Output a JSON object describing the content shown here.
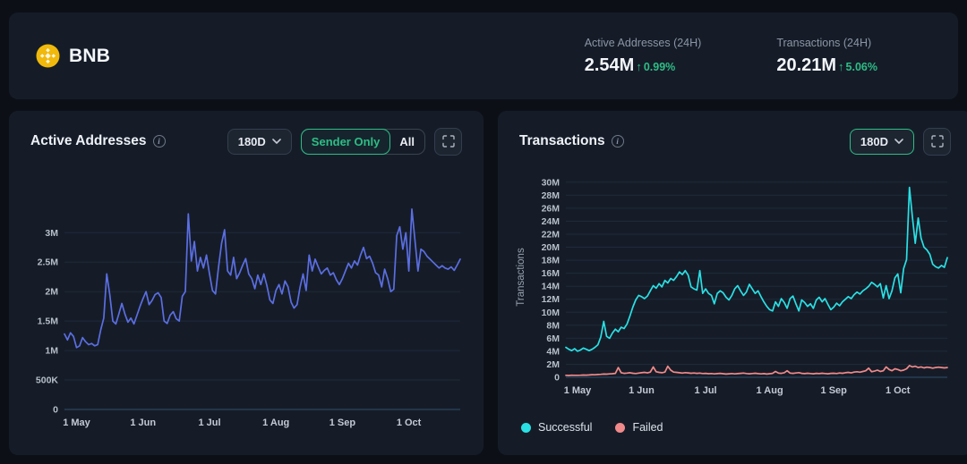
{
  "header": {
    "coin_name": "BNB",
    "stats": [
      {
        "label": "Active Addresses (24H)",
        "value": "2.54M",
        "arrow": "↑",
        "change": "0.99%",
        "direction": "up"
      },
      {
        "label": "Transactions (24H)",
        "value": "20.21M",
        "arrow": "↑",
        "change": "5.06%",
        "direction": "up"
      }
    ]
  },
  "panels": {
    "active_addresses": {
      "title": "Active Addresses",
      "range": "180D",
      "toggle": {
        "selected": "Sender Only",
        "other": "All"
      }
    },
    "transactions": {
      "title": "Transactions",
      "range": "180D"
    }
  },
  "legend": [
    {
      "name": "Successful",
      "color": "#2ae0e4"
    },
    {
      "name": "Failed",
      "color": "#f08a8a"
    }
  ],
  "colors": {
    "accent_green": "#2ebd85",
    "line_blue": "#5b6ee1",
    "line_cyan": "#2ae0e4",
    "line_red": "#f08a8a",
    "coin_gold": "#f0b90b",
    "panel_bg": "#151c28",
    "page_bg": "#0c1016"
  },
  "chart_data": [
    {
      "type": "line",
      "title": "Active Addresses",
      "range": "180D",
      "unit": "millions",
      "grid": true,
      "x_tick_labels": [
        "1 May",
        "1 Jun",
        "1 Jul",
        "1 Aug",
        "1 Sep",
        "1 Oct"
      ],
      "x_tick_indices": [
        4,
        26,
        48,
        70,
        92,
        114
      ],
      "y_ticks": [
        {
          "v": 0,
          "label": "0"
        },
        {
          "v": 0.5,
          "label": "500K"
        },
        {
          "v": 1,
          "label": "1M"
        },
        {
          "v": 1.5,
          "label": "1.5M"
        },
        {
          "v": 2,
          "label": "2M"
        },
        {
          "v": 2.5,
          "label": "2.5M"
        },
        {
          "v": 3,
          "label": "3M"
        }
      ],
      "y_max": 3.55,
      "series": [
        {
          "name": "Active Addresses",
          "color": "#5b6ee1",
          "values": [
            1.28,
            1.18,
            1.3,
            1.24,
            1.05,
            1.08,
            1.22,
            1.15,
            1.1,
            1.12,
            1.08,
            1.1,
            1.35,
            1.55,
            2.3,
            1.95,
            1.5,
            1.45,
            1.62,
            1.8,
            1.62,
            1.48,
            1.55,
            1.45,
            1.6,
            1.75,
            1.88,
            2.0,
            1.78,
            1.85,
            1.95,
            1.98,
            1.9,
            1.5,
            1.46,
            1.6,
            1.66,
            1.54,
            1.5,
            1.92,
            2.0,
            3.32,
            2.52,
            2.85,
            2.35,
            2.58,
            2.4,
            2.62,
            2.3,
            2.02,
            1.96,
            2.42,
            2.82,
            3.05,
            2.35,
            2.28,
            2.58,
            2.22,
            2.32,
            2.45,
            2.56,
            2.3,
            2.22,
            2.05,
            2.28,
            2.12,
            2.3,
            2.1,
            1.86,
            1.8,
            2.02,
            2.12,
            1.96,
            2.18,
            2.08,
            1.82,
            1.72,
            1.78,
            2.08,
            2.3,
            2.02,
            2.62,
            2.35,
            2.55,
            2.42,
            2.3,
            2.36,
            2.4,
            2.28,
            2.32,
            2.2,
            2.12,
            2.22,
            2.35,
            2.48,
            2.4,
            2.52,
            2.45,
            2.62,
            2.75,
            2.56,
            2.6,
            2.48,
            2.32,
            2.28,
            2.08,
            2.38,
            2.22,
            2.0,
            2.04,
            2.95,
            3.1,
            2.72,
            3.0,
            2.35,
            3.4,
            2.88,
            2.35,
            2.72,
            2.68,
            2.6,
            2.55,
            2.5,
            2.45,
            2.4,
            2.44,
            2.4,
            2.38,
            2.42,
            2.36,
            2.45,
            2.55
          ]
        }
      ]
    },
    {
      "type": "line",
      "title": "Transactions",
      "range": "180D",
      "unit": "millions",
      "grid": true,
      "y_axis_label": "Transactions",
      "legend_position": "bottom",
      "x_tick_labels": [
        "1 May",
        "1 Jun",
        "1 Jul",
        "1 Aug",
        "1 Sep",
        "1 Oct"
      ],
      "x_tick_indices": [
        4,
        26,
        48,
        70,
        92,
        114
      ],
      "y_ticks": [
        {
          "v": 0,
          "label": "0"
        },
        {
          "v": 2,
          "label": "2M"
        },
        {
          "v": 4,
          "label": "4M"
        },
        {
          "v": 6,
          "label": "6M"
        },
        {
          "v": 8,
          "label": "8M"
        },
        {
          "v": 10,
          "label": "10M"
        },
        {
          "v": 12,
          "label": "12M"
        },
        {
          "v": 14,
          "label": "14M"
        },
        {
          "v": 16,
          "label": "16M"
        },
        {
          "v": 18,
          "label": "18M"
        },
        {
          "v": 20,
          "label": "20M"
        },
        {
          "v": 22,
          "label": "22M"
        },
        {
          "v": 24,
          "label": "24M"
        },
        {
          "v": 26,
          "label": "26M"
        },
        {
          "v": 28,
          "label": "28M"
        },
        {
          "v": 30,
          "label": "30M"
        }
      ],
      "y_max": 30.8,
      "series": [
        {
          "name": "Successful",
          "color": "#2ae0e4",
          "values": [
            4.6,
            4.3,
            4.1,
            4.4,
            4.0,
            4.2,
            4.5,
            4.3,
            4.1,
            4.3,
            4.6,
            5.0,
            6.2,
            8.6,
            6.3,
            6.0,
            6.8,
            7.4,
            7.0,
            7.7,
            7.5,
            8.2,
            9.4,
            10.8,
            11.9,
            12.6,
            12.4,
            12.1,
            12.5,
            13.3,
            14.1,
            13.7,
            14.4,
            13.9,
            14.9,
            14.5,
            15.2,
            14.9,
            15.5,
            16.2,
            15.8,
            16.4,
            15.7,
            13.9,
            13.6,
            13.4,
            16.4,
            12.9,
            13.6,
            12.9,
            12.6,
            11.3,
            12.9,
            13.3,
            13.0,
            12.3,
            11.9,
            12.6,
            13.6,
            14.1,
            13.3,
            12.6,
            13.1,
            14.3,
            13.6,
            12.9,
            13.3,
            12.4,
            11.6,
            10.9,
            10.4,
            10.2,
            11.6,
            10.9,
            12.1,
            11.5,
            10.6,
            12.1,
            12.5,
            11.3,
            10.2,
            11.9,
            11.5,
            10.9,
            11.3,
            10.6,
            11.9,
            12.3,
            11.6,
            12.1,
            11.2,
            10.4,
            10.8,
            11.4,
            11.0,
            11.6,
            12.0,
            12.4,
            12.1,
            12.7,
            13.1,
            12.8,
            13.3,
            13.6,
            14.0,
            14.6,
            14.3,
            13.9,
            14.4,
            12.2,
            14.1,
            12.1,
            13.3,
            15.3,
            15.9,
            13.0,
            16.7,
            18.1,
            29.2,
            24.7,
            20.6,
            24.5,
            21.4,
            20.0,
            19.6,
            18.9,
            17.4,
            17.0,
            16.8,
            17.2,
            16.9,
            18.4
          ]
        },
        {
          "name": "Failed",
          "color": "#f08a8a",
          "values": [
            0.3,
            0.28,
            0.32,
            0.3,
            0.3,
            0.32,
            0.35,
            0.33,
            0.36,
            0.4,
            0.38,
            0.42,
            0.45,
            0.5,
            0.48,
            0.52,
            0.55,
            0.6,
            1.5,
            0.7,
            0.6,
            0.65,
            0.7,
            0.62,
            0.58,
            0.64,
            0.7,
            0.75,
            0.68,
            0.8,
            1.6,
            0.85,
            0.75,
            0.7,
            0.8,
            1.7,
            1.1,
            0.8,
            0.75,
            0.7,
            0.65,
            0.72,
            0.68,
            0.62,
            0.66,
            0.6,
            0.64,
            0.58,
            0.6,
            0.55,
            0.58,
            0.52,
            0.56,
            0.6,
            0.55,
            0.5,
            0.54,
            0.58,
            0.52,
            0.56,
            0.6,
            0.64,
            0.58,
            0.54,
            0.58,
            0.62,
            0.56,
            0.52,
            0.56,
            0.5,
            0.55,
            0.6,
            0.9,
            0.65,
            0.6,
            0.7,
            1.0,
            0.65,
            0.6,
            0.66,
            0.72,
            0.6,
            0.56,
            0.62,
            0.58,
            0.54,
            0.6,
            0.56,
            0.62,
            0.58,
            0.54,
            0.6,
            0.62,
            0.58,
            0.66,
            0.62,
            0.7,
            0.75,
            0.68,
            0.8,
            0.85,
            0.78,
            0.9,
            1.0,
            1.4,
            0.85,
            0.95,
            1.1,
            0.9,
            1.0,
            1.6,
            1.2,
            1.0,
            1.3,
            1.2,
            1.0,
            1.1,
            1.3,
            1.8,
            1.6,
            1.7,
            1.5,
            1.6,
            1.45,
            1.55,
            1.5,
            1.4,
            1.5,
            1.55,
            1.5,
            1.45,
            1.5
          ]
        }
      ]
    }
  ]
}
